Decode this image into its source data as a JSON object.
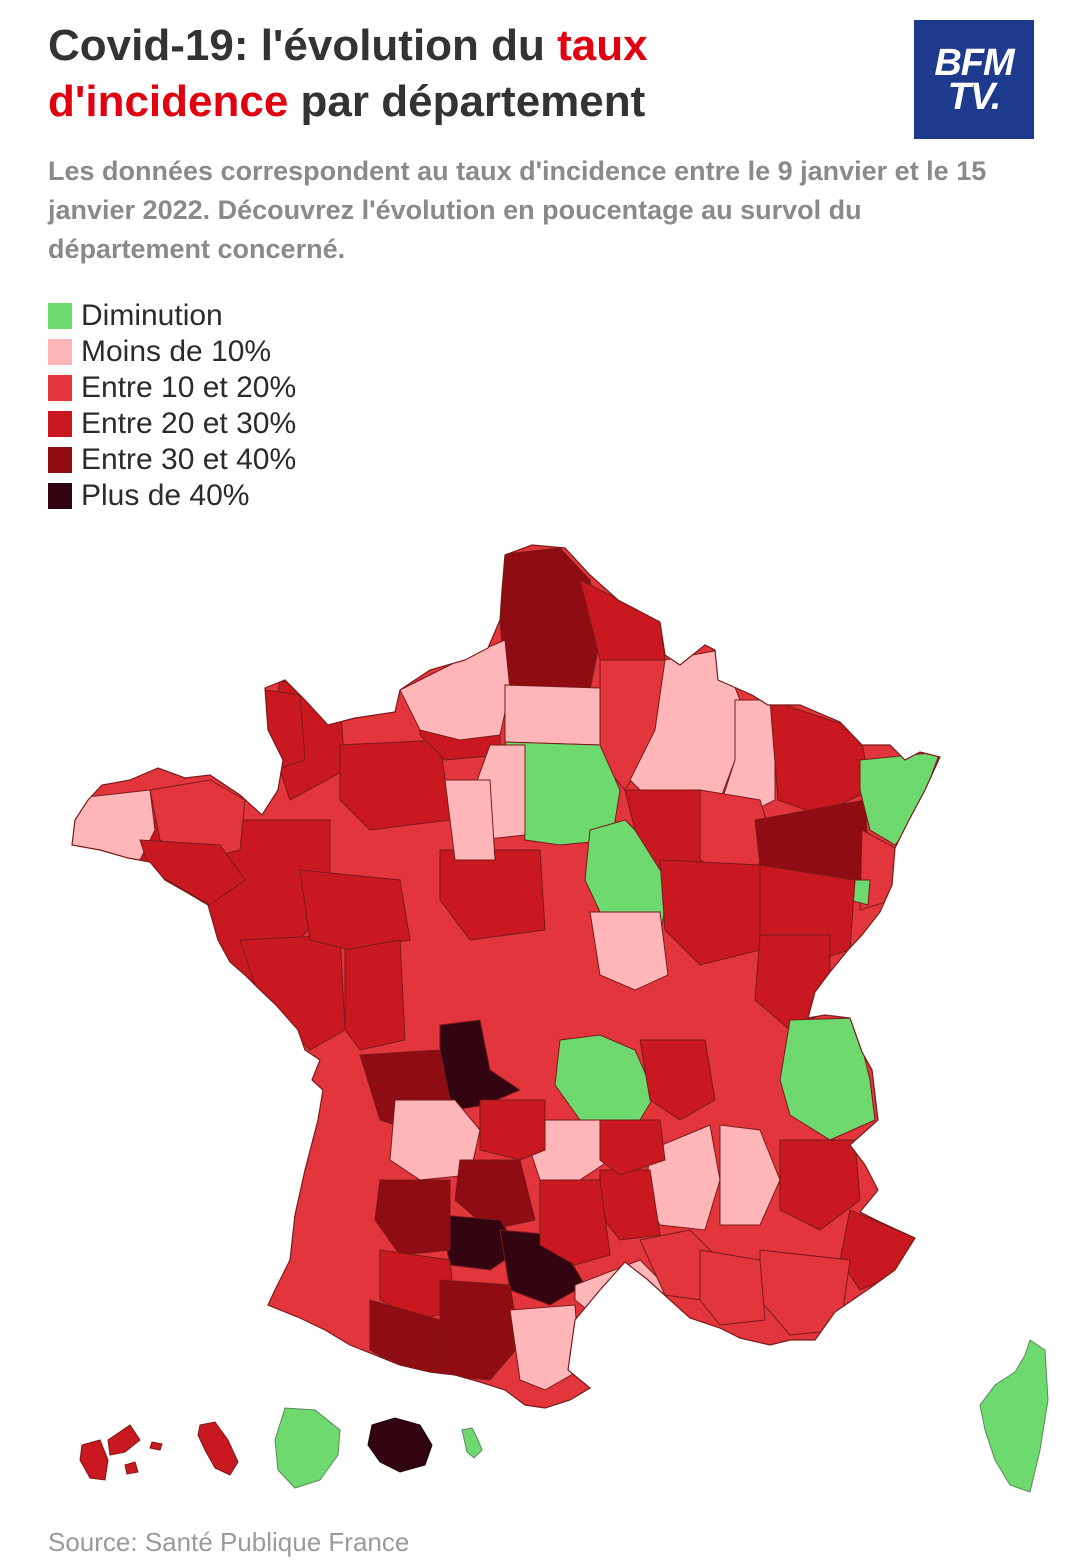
{
  "header": {
    "title_part1": "Covid-19: l'évolution du ",
    "title_highlight1": "taux",
    "title_highlight2": "d'incidence",
    "title_part2": " par département",
    "subtitle": "Les données correspondent au taux d'incidence entre le 9 janvier et le 15 janvier 2022. Découvrez l'évolution en poucentage au survol du département concerné.",
    "logo_line1": "BFM",
    "logo_line2": "TV."
  },
  "legend": {
    "items": [
      {
        "label": "Diminution",
        "color": "#6dd96f"
      },
      {
        "label": "Moins de 10%",
        "color": "#ffb6b9"
      },
      {
        "label": "Entre 10 et 20%",
        "color": "#e2363c"
      },
      {
        "label": "Entre 20 et 30%",
        "color": "#c9181f"
      },
      {
        "label": "Entre 30 et 40%",
        "color": "#8e0c12"
      },
      {
        "label": "Plus de 40%",
        "color": "#330510"
      }
    ]
  },
  "colors": {
    "title_highlight": "#e0000f",
    "logo_bg": "#1e3a8c",
    "border": "#7a1a1a"
  },
  "source": "Source: Santé Publique France"
}
